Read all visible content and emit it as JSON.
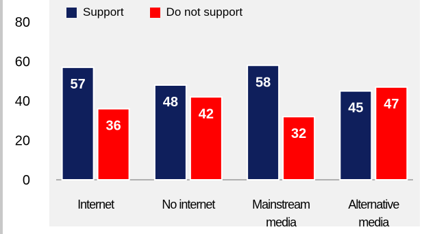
{
  "chart_data": {
    "type": "bar",
    "categories": [
      "Internet",
      "No internet",
      "Mainstream media",
      "Alternative media"
    ],
    "category_lines": [
      [
        "Internet"
      ],
      [
        "No internet"
      ],
      [
        "Mainstream",
        "media"
      ],
      [
        "Alternative",
        "media"
      ]
    ],
    "series": [
      {
        "name": "Support",
        "values": [
          57,
          48,
          58,
          45
        ],
        "color": "#0f1f5c"
      },
      {
        "name": "Do not support",
        "values": [
          36,
          42,
          32,
          47
        ],
        "color": "#ff0000"
      }
    ],
    "yticks": [
      "0",
      "20",
      "40",
      "60",
      "80"
    ],
    "ylim": [
      0,
      80
    ],
    "grid": false,
    "legend_position": "top"
  }
}
